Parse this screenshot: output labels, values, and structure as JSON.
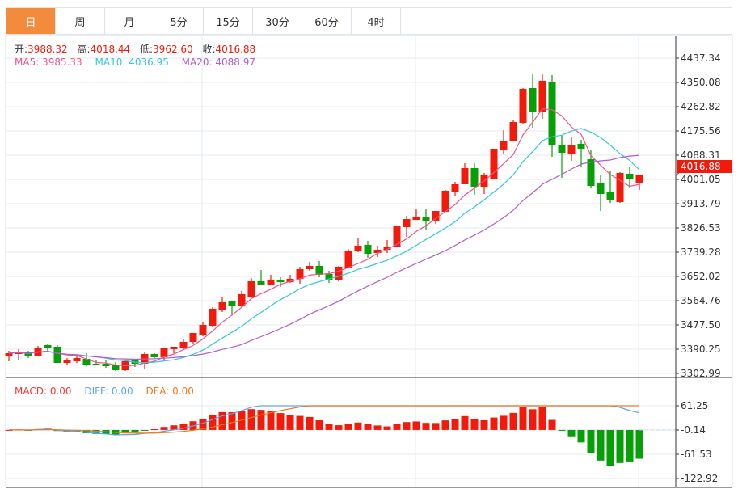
{
  "tabs": [
    {
      "label": "日",
      "active": true
    },
    {
      "label": "周",
      "active": false
    },
    {
      "label": "月",
      "active": false
    },
    {
      "label": "5分",
      "active": false
    },
    {
      "label": "15分",
      "active": false
    },
    {
      "label": "30分",
      "active": false
    },
    {
      "label": "60分",
      "active": false
    },
    {
      "label": "4时",
      "active": false
    }
  ],
  "ohlc_info": {
    "open_label": "开:",
    "open": "3988.32",
    "high_label": "高:",
    "high": "4018.44",
    "low_label": "低:",
    "low": "3962.60",
    "close_label": "收:",
    "close": "4016.88"
  },
  "ma_info": {
    "ma5": "MA5: 3985.33",
    "ma10": "MA10: 4036.95",
    "ma20": "MA20: 4088.97"
  },
  "macd_info": {
    "macd": "MACD: 0.00",
    "diff": "DIFF: 0.00",
    "dea": "DEA: 0.00"
  },
  "colors": {
    "up": "#f21a0a",
    "down": "#06a006",
    "ma5": "#f0548a",
    "ma10": "#36c6de",
    "ma20": "#b45ccb",
    "diff": "#5aa8f0",
    "dea": "#f07820",
    "active_tab": "#f28c3c"
  },
  "chart_data": {
    "type": "candlestick",
    "price_axis": {
      "ticks": [
        "4437.34",
        "4350.08",
        "4262.82",
        "4175.56",
        "4088.31",
        "4001.05",
        "3913.79",
        "3826.53",
        "3739.28",
        "3652.02",
        "3564.76",
        "3477.50",
        "3390.25",
        "3302.99"
      ],
      "range": [
        3302.99,
        4437.34
      ]
    },
    "current_price": "4016.88",
    "macd_axis": {
      "ticks": [
        "61.25",
        "-0.14",
        "-61.53",
        "-122.92"
      ],
      "range": [
        -122.92,
        61.25
      ]
    },
    "moving_averages": [
      5,
      10,
      20
    ],
    "grid": true,
    "ohlc": [
      [
        3364.1,
        3384.4,
        3346.6,
        3375.7
      ],
      [
        3372.8,
        3390.3,
        3349.5,
        3381.5
      ],
      [
        3381.5,
        3384.4,
        3358.3,
        3367.0
      ],
      [
        3367.0,
        3401.9,
        3364.1,
        3396.1
      ],
      [
        3404.8,
        3410.6,
        3378.6,
        3393.2
      ],
      [
        3399.0,
        3404.8,
        3340.8,
        3340.8
      ],
      [
        3340.8,
        3358.3,
        3332.1,
        3349.5
      ],
      [
        3346.6,
        3367.0,
        3340.8,
        3358.3
      ],
      [
        3355.3,
        3375.7,
        3329.2,
        3332.1
      ],
      [
        3337.9,
        3349.5,
        3332.1,
        3332.1
      ],
      [
        3337.9,
        3349.5,
        3323.3,
        3329.2
      ],
      [
        3332.1,
        3343.7,
        3311.7,
        3314.6
      ],
      [
        3314.6,
        3349.5,
        3311.7,
        3346.6
      ],
      [
        3349.5,
        3352.4,
        3326.2,
        3337.9
      ],
      [
        3337.9,
        3378.6,
        3320.4,
        3372.8
      ],
      [
        3372.8,
        3375.7,
        3358.3,
        3361.2
      ],
      [
        3361.2,
        3393.2,
        3352.4,
        3393.2
      ],
      [
        3390.3,
        3399.0,
        3375.7,
        3399.0
      ],
      [
        3396.1,
        3425.2,
        3387.3,
        3416.5
      ],
      [
        3416.5,
        3448.4,
        3410.6,
        3448.4
      ],
      [
        3442.6,
        3489.2,
        3436.8,
        3477.5
      ],
      [
        3474.6,
        3541.5,
        3468.8,
        3535.7
      ],
      [
        3529.9,
        3579.3,
        3524.1,
        3559.0
      ],
      [
        3561.9,
        3564.8,
        3512.4,
        3544.4
      ],
      [
        3544.4,
        3599.7,
        3541.5,
        3588.1
      ],
      [
        3579.3,
        3646.2,
        3579.3,
        3634.6
      ],
      [
        3634.6,
        3675.3,
        3623.0,
        3623.0
      ],
      [
        3620.0,
        3657.9,
        3620.0,
        3640.4
      ],
      [
        3640.4,
        3649.1,
        3614.2,
        3631.7
      ],
      [
        3631.7,
        3657.9,
        3628.8,
        3643.3
      ],
      [
        3643.3,
        3687.0,
        3625.9,
        3678.2
      ],
      [
        3678.2,
        3704.4,
        3672.4,
        3689.9
      ],
      [
        3689.9,
        3707.4,
        3649.1,
        3657.9
      ],
      [
        3660.8,
        3672.4,
        3628.8,
        3640.4
      ],
      [
        3640.4,
        3689.9,
        3634.6,
        3687.0
      ],
      [
        3684.0,
        3750.0,
        3684.0,
        3745.1
      ],
      [
        3742.2,
        3791.6,
        3739.3,
        3762.5
      ],
      [
        3765.4,
        3780.0,
        3718.9,
        3733.4
      ],
      [
        3736.3,
        3762.5,
        3721.8,
        3748.0
      ],
      [
        3748.0,
        3782.9,
        3736.3,
        3759.6
      ],
      [
        3756.7,
        3835.3,
        3756.7,
        3835.3
      ],
      [
        3829.5,
        3870.2,
        3794.6,
        3858.5
      ],
      [
        3855.6,
        3896.3,
        3855.6,
        3867.3
      ],
      [
        3867.3,
        3896.3,
        3820.7,
        3852.7
      ],
      [
        3852.7,
        3887.6,
        3841.1,
        3887.6
      ],
      [
        3884.7,
        3963.2,
        3884.7,
        3960.3
      ],
      [
        3957.4,
        3992.3,
        3940.0,
        3983.6
      ],
      [
        3983.6,
        4059.3,
        3983.6,
        4041.8
      ],
      [
        4041.8,
        4059.3,
        3945.8,
        3974.9
      ],
      [
        3974.9,
        4024.3,
        3948.7,
        4018.5
      ],
      [
        4001.1,
        4111.6,
        4001.1,
        4111.6
      ],
      [
        4108.7,
        4178.5,
        4094.1,
        4140.7
      ],
      [
        4140.7,
        4216.3,
        4140.7,
        4207.5
      ],
      [
        4204.7,
        4329.7,
        4201.7,
        4326.8
      ],
      [
        4329.7,
        4379.2,
        4187.2,
        4245.3
      ],
      [
        4245.3,
        4382.1,
        4219.2,
        4355.9
      ],
      [
        4353.0,
        4376.2,
        4082.4,
        4123.2
      ],
      [
        4126.1,
        4161.0,
        4006.9,
        4097.0
      ],
      [
        4094.1,
        4155.2,
        4067.9,
        4126.1
      ],
      [
        4129.1,
        4143.6,
        4044.7,
        4111.6
      ],
      [
        4073.7,
        4108.7,
        3972.0,
        3977.8
      ],
      [
        3986.5,
        4018.5,
        3887.6,
        3948.7
      ],
      [
        3954.5,
        4030.1,
        3916.7,
        3928.4
      ],
      [
        3919.6,
        4027.2,
        3916.7,
        4024.3
      ],
      [
        4021.4,
        4044.7,
        3972.0,
        4001.1
      ],
      [
        3988.32,
        4018.44,
        3962.6,
        4016.88
      ]
    ]
  }
}
